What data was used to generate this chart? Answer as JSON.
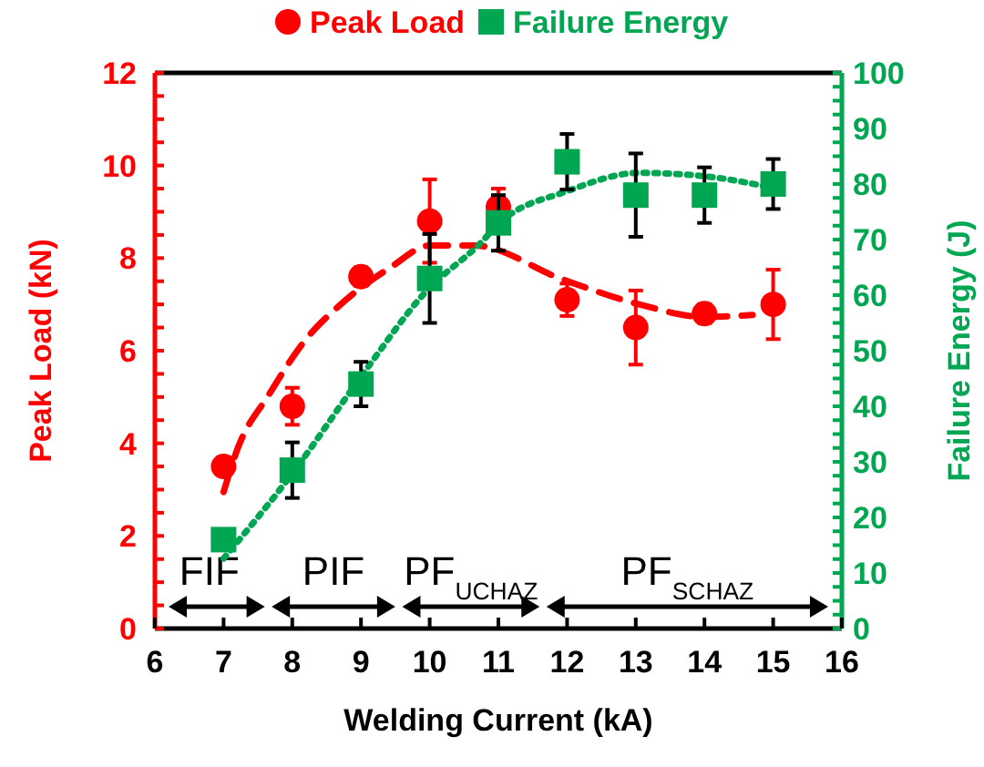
{
  "chart_data": {
    "type": "scatter",
    "xlabel": "Welding Current (kA)",
    "ylabel": "Peak Load (kN)",
    "y2label": "Failure Energy (J)",
    "xlim": [
      6,
      16
    ],
    "xticks": [
      6,
      7,
      8,
      9,
      10,
      11,
      12,
      13,
      14,
      15,
      16
    ],
    "ylim": [
      0,
      12
    ],
    "yticks": [
      0,
      2,
      4,
      6,
      8,
      10,
      12
    ],
    "y2lim": [
      0,
      100
    ],
    "y2ticks": [
      0,
      10,
      20,
      30,
      40,
      50,
      60,
      70,
      80,
      90,
      100
    ],
    "legend": "top",
    "grid": false,
    "series": [
      {
        "name": "Peak Load",
        "marker": "circle",
        "color": "#ff0000",
        "x": [
          7,
          8,
          9,
          10,
          11,
          12,
          13,
          14,
          15
        ],
        "values": [
          3.5,
          4.8,
          7.6,
          8.8,
          9.1,
          7.1,
          6.5,
          6.8,
          7.0
        ],
        "errors": [
          0.1,
          0.4,
          0.2,
          0.9,
          0.4,
          0.35,
          0.8,
          0.2,
          0.75
        ]
      },
      {
        "name": "Failure Energy",
        "marker": "square",
        "axis": "y2",
        "color": "#00a651",
        "x": [
          7,
          8,
          9,
          10,
          11,
          12,
          13,
          14,
          15
        ],
        "values": [
          16,
          28.5,
          44,
          63,
          73,
          84,
          78,
          78,
          80
        ],
        "errors": [
          null,
          5,
          4,
          8,
          5,
          5,
          7.5,
          5,
          4.5
        ]
      },
      {
        "type": "line",
        "line_style": "dashed",
        "marker": "none",
        "color": "#ff0000",
        "x": [
          7,
          7.2,
          7.66,
          8.19,
          8.72,
          9.43,
          10,
          10.66,
          11.9,
          13.05,
          14,
          14.7
        ],
        "values": [
          2.95,
          3.87,
          5.05,
          6.23,
          7.02,
          7.8,
          8.27,
          8.27,
          7.56,
          7.0,
          6.73,
          6.77
        ]
      },
      {
        "type": "line",
        "line_style": "dotted",
        "marker": "none",
        "axis": "y2",
        "color": "#00a651",
        "x": [
          7,
          8,
          9,
          9.95,
          10.75,
          11,
          12,
          13.05,
          14,
          15
        ],
        "values": [
          12.6,
          27.9,
          45.3,
          60.7,
          69.5,
          72.8,
          78.7,
          82,
          81.4,
          79.3
        ]
      }
    ],
    "annotations": [
      "FIF",
      "PIF",
      "PF$_{UCHAZ}$",
      "PF$_{SCHAZ}$"
    ]
  }
}
